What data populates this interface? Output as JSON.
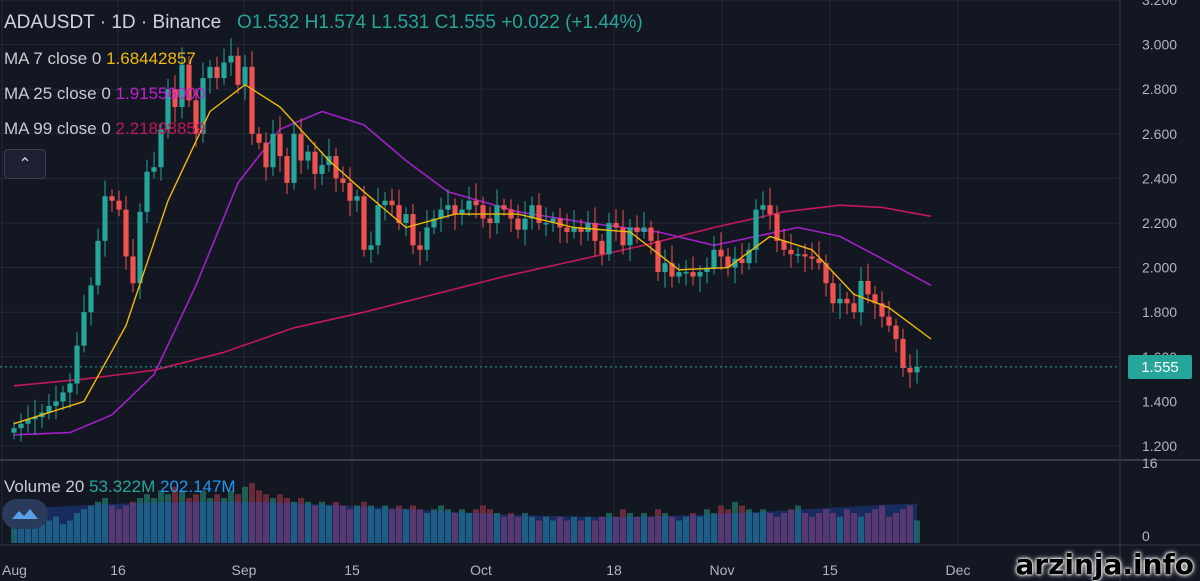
{
  "header": {
    "symbol": "ADAUSDT",
    "interval": "1D",
    "exchange": "Binance",
    "open": "O1.532",
    "high": "H1.574",
    "low": "L1.531",
    "close": "C1.555",
    "change": "+0.022 (+1.44%)"
  },
  "indicators": {
    "ma7": {
      "label": "MA 7 close 0",
      "value": "1.68442857",
      "color": "#f0b90b"
    },
    "ma25": {
      "label": "MA 25 close 0",
      "value": "1.91556000",
      "color": "#a020c8"
    },
    "ma99": {
      "label": "MA 99 close 0",
      "value": "2.21898859",
      "color": "#c2185b"
    },
    "volume": {
      "label": "Volume 20",
      "value": "53.322M",
      "ma_value": "202.147M",
      "value_color": "#26a69a",
      "ma_color": "#2196f3"
    }
  },
  "colors": {
    "background": "#131722",
    "up": "#26a69a",
    "down": "#ef5350",
    "grid": "#242938"
  },
  "price_tag": "1.555",
  "watermark": "arzinja.info",
  "chart_data": {
    "type": "candlestick",
    "y_axis": {
      "ticks": [
        "3.200",
        "3.000",
        "2.800",
        "2.600",
        "2.400",
        "2.200",
        "2.000",
        "1.800",
        "1.600",
        "1.400",
        "1.200"
      ],
      "range": [
        1.2,
        3.2
      ]
    },
    "volume_axis": {
      "ticks": [
        "16",
        "0"
      ]
    },
    "x_axis": {
      "ticks": [
        "Aug",
        "16",
        "Sep",
        "15",
        "Oct",
        "18",
        "Nov",
        "15",
        "Dec"
      ]
    },
    "last_price": 1.555,
    "close_path": [
      1.28,
      1.3,
      1.32,
      1.33,
      1.35,
      1.38,
      1.4,
      1.44,
      1.48,
      1.65,
      1.8,
      1.92,
      2.12,
      2.32,
      2.3,
      2.26,
      2.05,
      1.93,
      2.25,
      2.43,
      2.45,
      2.62,
      2.8,
      2.72,
      2.91,
      2.75,
      2.6,
      2.85,
      2.9,
      2.85,
      2.92,
      2.95,
      2.82,
      2.9,
      2.6,
      2.56,
      2.45,
      2.6,
      2.5,
      2.38,
      2.6,
      2.48,
      2.52,
      2.42,
      2.46,
      2.5,
      2.4,
      2.38,
      2.3,
      2.32,
      2.08,
      2.1,
      2.28,
      2.3,
      2.28,
      2.2,
      2.24,
      2.1,
      2.08,
      2.18,
      2.22,
      2.26,
      2.28,
      2.24,
      2.26,
      2.3,
      2.28,
      2.22,
      2.2,
      2.28,
      2.26,
      2.22,
      2.17,
      2.22,
      2.28,
      2.2,
      2.2,
      2.22,
      2.18,
      2.16,
      2.18,
      2.16,
      2.2,
      2.12,
      2.06,
      2.2,
      2.18,
      2.1,
      2.18,
      2.16,
      2.18,
      2.12,
      1.98,
      2.02,
      1.96,
      1.98,
      1.98,
      1.96,
      1.98,
      2.0,
      2.08,
      2.05,
      2.0,
      2.04,
      2.02,
      2.08,
      2.26,
      2.28,
      2.24,
      2.12,
      2.08,
      2.06,
      2.06,
      2.05,
      2.04,
      2.02,
      1.93,
      1.84,
      1.86,
      1.84,
      1.8,
      1.94,
      1.88,
      1.84,
      1.78,
      1.74,
      1.68,
      1.55,
      1.53,
      1.555
    ],
    "ma7_path": [
      [
        0,
        1.3
      ],
      [
        10,
        1.4
      ],
      [
        16,
        1.74
      ],
      [
        22,
        2.3
      ],
      [
        28,
        2.7
      ],
      [
        33,
        2.82
      ],
      [
        38,
        2.72
      ],
      [
        45,
        2.48
      ],
      [
        50,
        2.34
      ],
      [
        56,
        2.18
      ],
      [
        63,
        2.24
      ],
      [
        72,
        2.24
      ],
      [
        80,
        2.18
      ],
      [
        88,
        2.16
      ],
      [
        95,
        1.99
      ],
      [
        102,
        2.0
      ],
      [
        108,
        2.14
      ],
      [
        114,
        2.08
      ],
      [
        120,
        1.88
      ],
      [
        125,
        1.82
      ],
      [
        131,
        1.68
      ]
    ],
    "ma25_path": [
      [
        0,
        1.25
      ],
      [
        8,
        1.26
      ],
      [
        14,
        1.34
      ],
      [
        20,
        1.52
      ],
      [
        26,
        1.92
      ],
      [
        32,
        2.38
      ],
      [
        38,
        2.62
      ],
      [
        44,
        2.7
      ],
      [
        50,
        2.64
      ],
      [
        56,
        2.48
      ],
      [
        62,
        2.34
      ],
      [
        72,
        2.25
      ],
      [
        82,
        2.2
      ],
      [
        92,
        2.16
      ],
      [
        100,
        2.1
      ],
      [
        106,
        2.14
      ],
      [
        112,
        2.18
      ],
      [
        118,
        2.14
      ],
      [
        124,
        2.04
      ],
      [
        131,
        1.92
      ]
    ],
    "ma99_path": [
      [
        0,
        1.47
      ],
      [
        10,
        1.5
      ],
      [
        20,
        1.54
      ],
      [
        30,
        1.62
      ],
      [
        40,
        1.73
      ],
      [
        50,
        1.8
      ],
      [
        60,
        1.88
      ],
      [
        70,
        1.96
      ],
      [
        80,
        2.03
      ],
      [
        90,
        2.1
      ],
      [
        100,
        2.18
      ],
      [
        110,
        2.25
      ],
      [
        118,
        2.28
      ],
      [
        124,
        2.27
      ],
      [
        131,
        2.23
      ]
    ],
    "volume_profile": [
      4,
      5,
      5,
      6,
      5,
      6,
      7,
      5,
      6,
      8,
      9,
      10,
      11,
      12,
      10,
      9,
      10,
      11,
      12,
      13,
      12,
      14,
      13,
      15,
      14,
      12,
      13,
      14,
      12,
      13,
      12,
      14,
      13,
      15,
      16,
      14,
      13,
      12,
      13,
      12,
      11,
      12,
      11,
      10,
      11,
      10,
      11,
      10,
      9,
      10,
      11,
      10,
      9,
      10,
      9,
      10,
      9,
      10,
      9,
      8,
      9,
      10,
      9,
      8,
      9,
      8,
      9,
      10,
      9,
      8,
      7,
      8,
      7,
      8,
      7,
      6,
      7,
      6,
      7,
      6,
      7,
      6,
      7,
      6,
      7,
      8,
      7,
      9,
      8,
      7,
      8,
      7,
      9,
      8,
      7,
      6,
      7,
      8,
      7,
      9,
      8,
      10,
      9,
      11,
      10,
      9,
      8,
      9,
      8,
      7,
      8,
      9,
      10,
      8,
      7,
      8,
      9,
      8,
      7,
      9,
      8,
      7,
      8,
      9,
      10,
      7,
      8,
      9,
      10,
      6,
      5,
      4
    ]
  }
}
